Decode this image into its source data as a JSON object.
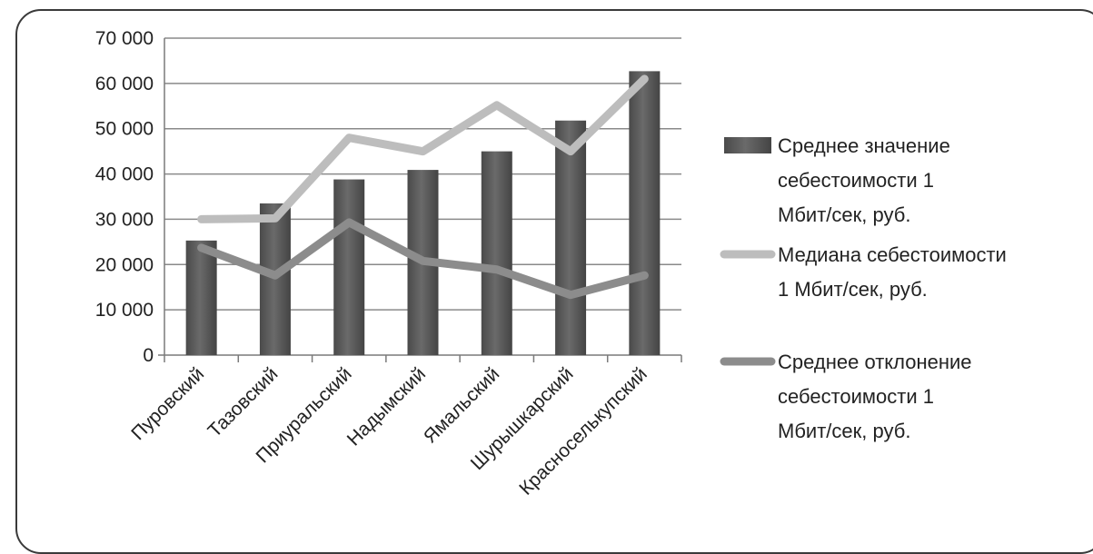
{
  "chart_data": {
    "type": "bar",
    "categories": [
      "Пуровский",
      "Тазовский",
      "Приуральский",
      "Надымский",
      "Ямальский",
      "Шурышкарский",
      "Красноселькупский"
    ],
    "ylim": [
      0,
      70000
    ],
    "yticks": [
      0,
      10000,
      20000,
      30000,
      40000,
      50000,
      60000,
      70000
    ],
    "ytick_labels": [
      "0",
      "10 000",
      "20 000",
      "30 000",
      "40 000",
      "50 000",
      "60 000",
      "70 000"
    ],
    "grid": true,
    "legend_position": "right",
    "series": [
      {
        "name": "Среднее значение себестоимости 1 Мбит/сек, руб.",
        "type": "bar",
        "values": [
          25300,
          33500,
          38800,
          40900,
          45000,
          51800,
          62700
        ],
        "color": "#555555",
        "legend_lines": [
          "Среднее значение",
          "себестоимости 1",
          "Мбит/сек, руб."
        ]
      },
      {
        "name": "Медиана себестоимости 1 Мбит/сек, руб.",
        "type": "line",
        "values": [
          30000,
          30200,
          48000,
          45000,
          55200,
          45000,
          61000
        ],
        "color": "#bdbdbd",
        "legend_lines": [
          "Медиана себестоимости",
          "1 Мбит/сек, руб."
        ]
      },
      {
        "name": "Среднее отклонение себестоимости 1 Мбит/сек, руб.",
        "type": "line",
        "values": [
          23700,
          17600,
          29300,
          20800,
          18900,
          13300,
          17600
        ],
        "color": "#8c8c8c",
        "legend_lines": [
          "Среднее отклонение",
          "себестоимости 1",
          "Мбит/сек, руб."
        ]
      }
    ]
  }
}
